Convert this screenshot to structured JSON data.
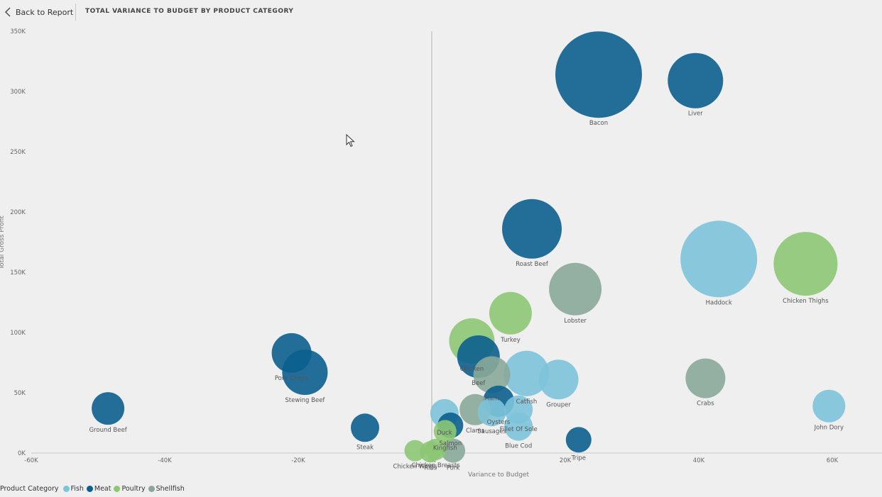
{
  "header": {
    "back_label": "Back to Report",
    "title": "TOTAL VARIANCE TO BUDGET BY PRODUCT CATEGORY"
  },
  "colors": {
    "Fish": "#7dc3d9",
    "Meat": "#0b5f8e",
    "Poultry": "#8cc774",
    "Shellfish": "#8aa899"
  },
  "legend": {
    "title": "Product Category",
    "items": [
      "Fish",
      "Meat",
      "Poultry",
      "Shellfish"
    ]
  },
  "chart_data": {
    "type": "scatter",
    "xlabel": "Variance to Budget",
    "ylabel": "Total Gross Profit",
    "xlim": [
      -60000,
      68000
    ],
    "ylim": [
      0,
      350000
    ],
    "x_ticks": [
      -60000,
      -40000,
      -20000,
      0,
      20000,
      40000,
      60000
    ],
    "x_tick_labels": [
      "-60K",
      "-40K",
      "-20K",
      "0K",
      "20K",
      "40K",
      "60K"
    ],
    "y_ticks": [
      0,
      50000,
      100000,
      150000,
      200000,
      250000,
      300000,
      350000
    ],
    "y_tick_labels": [
      "0K",
      "50K",
      "100K",
      "150K",
      "200K",
      "250K",
      "300K",
      "350K"
    ],
    "points": [
      {
        "name": "Bacon",
        "category": "Meat",
        "x": 25000,
        "y": 314000,
        "size": 61
      },
      {
        "name": "Liver",
        "category": "Meat",
        "x": 39500,
        "y": 309000,
        "size": 39
      },
      {
        "name": "Roast Beef",
        "category": "Meat",
        "x": 15000,
        "y": 186000,
        "size": 42
      },
      {
        "name": "Haddock",
        "category": "Fish",
        "x": 43000,
        "y": 161000,
        "size": 54
      },
      {
        "name": "Chicken Thighs",
        "category": "Poultry",
        "x": 56000,
        "y": 157000,
        "size": 45
      },
      {
        "name": "Lobster",
        "category": "Shellfish",
        "x": 21500,
        "y": 136000,
        "size": 37
      },
      {
        "name": "Turkey",
        "category": "Poultry",
        "x": 11800,
        "y": 116000,
        "size": 30
      },
      {
        "name": "Pork Chops",
        "category": "Meat",
        "x": -21000,
        "y": 83000,
        "size": 28
      },
      {
        "name": "Stewing Beef",
        "category": "Meat",
        "x": -19000,
        "y": 67000,
        "size": 32
      },
      {
        "name": "Ground Beef",
        "category": "Meat",
        "x": -48500,
        "y": 37000,
        "size": 23
      },
      {
        "name": "Catfish",
        "category": "Fish",
        "x": 14200,
        "y": 66000,
        "size": 32
      },
      {
        "name": "Grouper",
        "category": "Fish",
        "x": 19000,
        "y": 61000,
        "size": 28
      },
      {
        "name": "Crabs",
        "category": "Shellfish",
        "x": 41000,
        "y": 62000,
        "size": 28
      },
      {
        "name": "John Dory",
        "category": "Fish",
        "x": 59500,
        "y": 39000,
        "size": 23
      },
      {
        "name": "Chicken",
        "category": "Poultry",
        "x": 6000,
        "y": 93000,
        "size": 32
      },
      {
        "name": "Beef",
        "category": "Meat",
        "x": 7000,
        "y": 80000,
        "size": 30
      },
      {
        "name": "Ham",
        "category": "Shellfish",
        "x": 9000,
        "y": 65000,
        "size": 26
      },
      {
        "name": "Oysters",
        "category": "Meat",
        "x": 10000,
        "y": 43000,
        "size": 22
      },
      {
        "name": "Fillet Of Sole",
        "category": "Fish",
        "x": 13000,
        "y": 36000,
        "size": 20
      },
      {
        "name": "Sausages",
        "category": "Fish",
        "x": 9000,
        "y": 34000,
        "size": 20
      },
      {
        "name": "Duck",
        "category": "Fish",
        "x": 1900,
        "y": 33000,
        "size": 20
      },
      {
        "name": "Clams",
        "category": "Shellfish",
        "x": 6500,
        "y": 36000,
        "size": 22
      },
      {
        "name": "Blue Cod",
        "category": "Fish",
        "x": 13000,
        "y": 22000,
        "size": 20
      },
      {
        "name": "Salmon",
        "category": "Meat",
        "x": 2800,
        "y": 23000,
        "size": 18
      },
      {
        "name": "Kingfish",
        "category": "Poultry",
        "x": 2000,
        "y": 18000,
        "size": 16
      },
      {
        "name": "Tripe",
        "category": "Meat",
        "x": 22000,
        "y": 11000,
        "size": 18
      },
      {
        "name": "Steak",
        "category": "Meat",
        "x": -10000,
        "y": 21000,
        "size": 20
      },
      {
        "name": "Chicken Wings",
        "category": "Poultry",
        "x": -2500,
        "y": 2000,
        "size": 15
      },
      {
        "name": "Ribs",
        "category": "Poultry",
        "x": -200,
        "y": 1000,
        "size": 15
      },
      {
        "name": "Chicken Breasts",
        "category": "Poultry",
        "x": 600,
        "y": 3000,
        "size": 15
      },
      {
        "name": "Pork",
        "category": "Shellfish",
        "x": 3200,
        "y": 2000,
        "size": 17
      }
    ]
  }
}
